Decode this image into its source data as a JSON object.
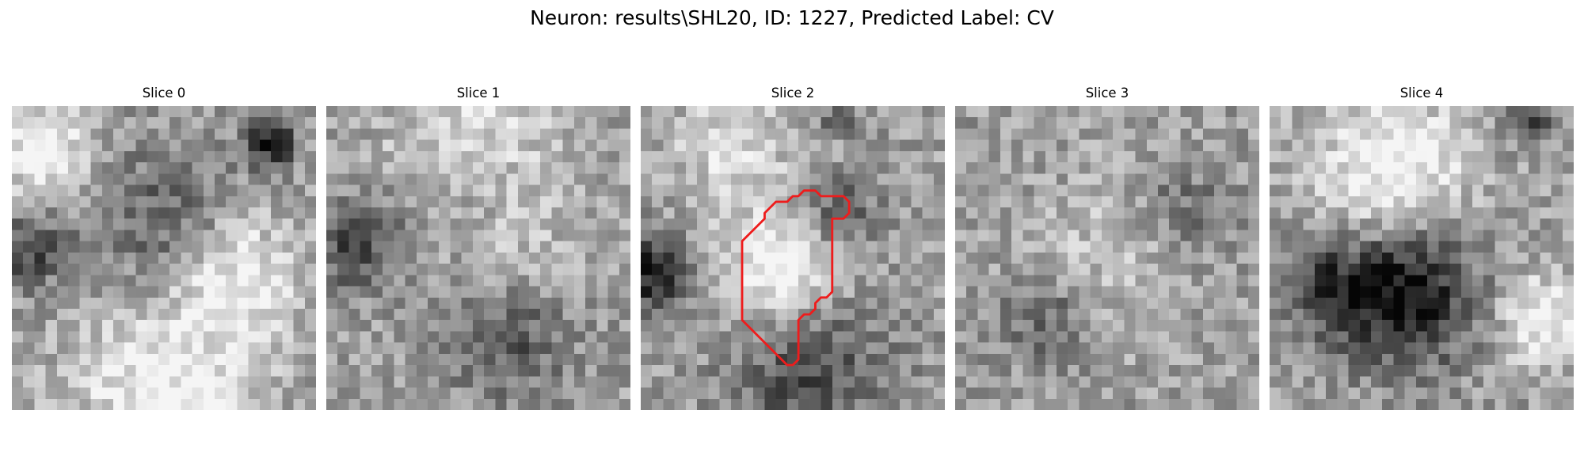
{
  "figure": {
    "suptitle": "Neuron: results\\SHL20, ID: 1227, Predicted Label: CV"
  },
  "slices": [
    {
      "title": "Slice 0",
      "seed": 11,
      "dark_blobs": [
        [
          0.85,
          0.12,
          0.08,
          0.55
        ],
        [
          0.05,
          0.48,
          0.12,
          0.35
        ],
        [
          0.5,
          0.4,
          0.25,
          0.25
        ]
      ],
      "light_blobs": [
        [
          0.1,
          0.15,
          0.15,
          0.4
        ],
        [
          0.75,
          0.55,
          0.2,
          0.35
        ],
        [
          0.5,
          0.9,
          0.3,
          0.35
        ]
      ]
    },
    {
      "title": "Slice 1",
      "seed": 23,
      "dark_blobs": [
        [
          0.1,
          0.45,
          0.15,
          0.35
        ],
        [
          0.6,
          0.75,
          0.2,
          0.3
        ],
        [
          0.5,
          0.35,
          0.2,
          0.15
        ]
      ],
      "light_blobs": [
        [
          0.5,
          0.1,
          0.3,
          0.25
        ],
        [
          0.6,
          0.5,
          0.2,
          0.2
        ]
      ]
    },
    {
      "title": "Slice 2",
      "seed": 37,
      "dark_blobs": [
        [
          0.05,
          0.55,
          0.12,
          0.55
        ],
        [
          0.65,
          0.35,
          0.12,
          0.3
        ],
        [
          0.55,
          0.85,
          0.25,
          0.35
        ],
        [
          0.65,
          0.05,
          0.05,
          0.35
        ]
      ],
      "light_blobs": [
        [
          0.45,
          0.55,
          0.2,
          0.45
        ],
        [
          0.3,
          0.12,
          0.2,
          0.25
        ]
      ]
    },
    {
      "title": "Slice 3",
      "seed": 51,
      "dark_blobs": [
        [
          0.3,
          0.7,
          0.15,
          0.25
        ],
        [
          0.75,
          0.35,
          0.15,
          0.2
        ]
      ],
      "light_blobs": [
        [
          0.5,
          0.5,
          0.25,
          0.15
        ]
      ]
    },
    {
      "title": "Slice 4",
      "seed": 63,
      "dark_blobs": [
        [
          0.45,
          0.62,
          0.22,
          0.6
        ],
        [
          0.2,
          0.6,
          0.15,
          0.35
        ],
        [
          0.85,
          0.05,
          0.08,
          0.35
        ]
      ],
      "light_blobs": [
        [
          0.4,
          0.2,
          0.25,
          0.4
        ],
        [
          0.9,
          0.7,
          0.15,
          0.35
        ]
      ]
    }
  ],
  "contour": {
    "slice_index": 2,
    "color": "#ee1c1c",
    "points": [
      [
        14,
        8
      ],
      [
        14.5,
        7.5
      ],
      [
        15.5,
        7.5
      ],
      [
        16,
        8
      ],
      [
        18,
        8
      ],
      [
        18.5,
        8.5
      ],
      [
        18.5,
        9.5
      ],
      [
        18,
        10
      ],
      [
        17,
        10
      ],
      [
        17,
        16.5
      ],
      [
        16.5,
        17
      ],
      [
        16,
        17
      ],
      [
        15.5,
        17.5
      ],
      [
        15.5,
        18
      ],
      [
        15,
        18.5
      ],
      [
        14.5,
        18.5
      ],
      [
        14,
        19
      ],
      [
        14,
        22.5
      ],
      [
        13.5,
        23
      ],
      [
        13,
        23
      ],
      [
        9,
        19
      ],
      [
        9,
        12
      ],
      [
        11,
        10
      ],
      [
        11,
        9.5
      ],
      [
        12,
        8.5
      ],
      [
        13,
        8.5
      ],
      [
        13.5,
        8
      ]
    ]
  },
  "grid_size": 27
}
